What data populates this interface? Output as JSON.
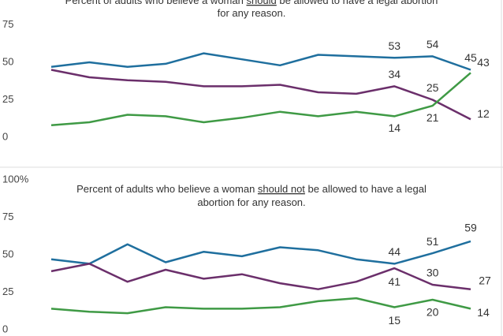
{
  "chart_data": [
    {
      "type": "line",
      "title": [
        [
          "Percent of adults who believe a woman ",
          "should",
          " be allowed to have a legal abortion"
        ],
        [
          "for any reason."
        ]
      ],
      "ylim": [
        0,
        100
      ],
      "yticks": [
        0,
        25,
        50,
        75
      ],
      "series": [
        {
          "color": "#1f6f9e",
          "values": [
            47,
            50,
            47,
            49,
            56,
            52,
            48,
            55,
            54,
            53,
            54,
            45
          ]
        },
        {
          "color": "#6b2f6b",
          "values": [
            45,
            40,
            38,
            37,
            34,
            34,
            35,
            30,
            29,
            34,
            25,
            12
          ]
        },
        {
          "color": "#3f9a45",
          "values": [
            8,
            10,
            15,
            14,
            10,
            13,
            17,
            14,
            17,
            14,
            21,
            43
          ]
        }
      ]
    },
    {
      "type": "line",
      "title": [
        [
          "Percent of adults who believe a woman ",
          "should not",
          " be allowed to have a legal"
        ],
        [
          "abortion for any reason."
        ]
      ],
      "ylim": [
        0,
        100
      ],
      "yticks": [
        0,
        25,
        50,
        75,
        {
          "value": 100,
          "label": "100%"
        }
      ],
      "series": [
        {
          "color": "#1f6f9e",
          "values": [
            47,
            44,
            57,
            45,
            52,
            49,
            55,
            53,
            47,
            44,
            51,
            59
          ]
        },
        {
          "color": "#6b2f6b",
          "values": [
            39,
            44,
            32,
            40,
            34,
            37,
            31,
            27,
            32,
            41,
            30,
            27
          ]
        },
        {
          "color": "#3f9a45",
          "values": [
            14,
            12,
            11,
            15,
            14,
            14,
            15,
            19,
            21,
            15,
            20,
            14
          ]
        }
      ]
    }
  ]
}
